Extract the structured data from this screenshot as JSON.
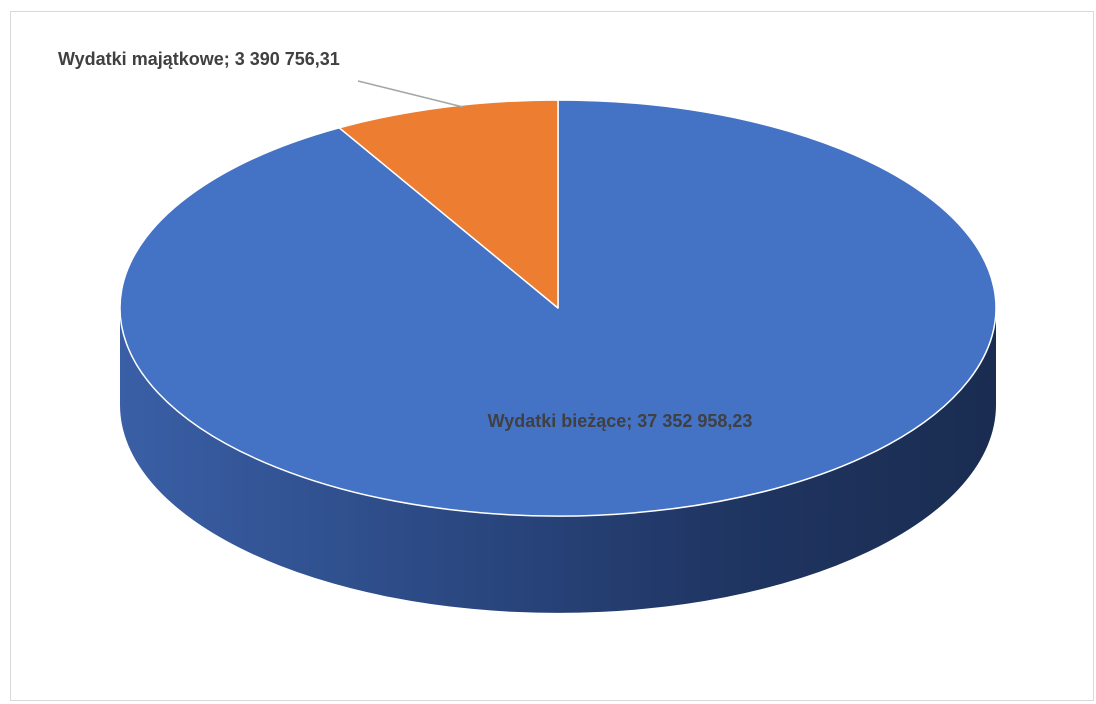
{
  "chart_data": {
    "type": "pie",
    "style": "3d",
    "title": "",
    "slices": [
      {
        "label": "Wydatki bieżące",
        "value": 37352958.23,
        "value_text": "37 352 958,23",
        "color": "#4472c4"
      },
      {
        "label": "Wydatki majątkowe",
        "value": 3390756.31,
        "value_text": "3 390 756,31",
        "color": "#ed7d31"
      }
    ],
    "data_labels": [
      "Wydatki bieżące; 37 352 958,23",
      "Wydatki majątkowe; 3 390 756,31"
    ],
    "legend": "none"
  },
  "colors": {
    "label_text": "#404040",
    "leader_line": "#a6a6a6",
    "frame_border": "#d9d9d9"
  }
}
